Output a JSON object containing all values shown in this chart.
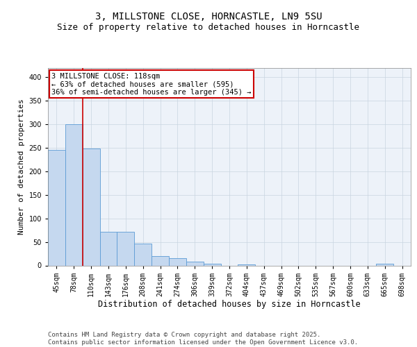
{
  "title_line1": "3, MILLSTONE CLOSE, HORNCASTLE, LN9 5SU",
  "title_line2": "Size of property relative to detached houses in Horncastle",
  "xlabel": "Distribution of detached houses by size in Horncastle",
  "ylabel": "Number of detached properties",
  "categories": [
    "45sqm",
    "78sqm",
    "110sqm",
    "143sqm",
    "176sqm",
    "208sqm",
    "241sqm",
    "274sqm",
    "306sqm",
    "339sqm",
    "372sqm",
    "404sqm",
    "437sqm",
    "469sqm",
    "502sqm",
    "535sqm",
    "567sqm",
    "600sqm",
    "633sqm",
    "665sqm",
    "698sqm"
  ],
  "values": [
    245,
    300,
    248,
    72,
    72,
    47,
    20,
    16,
    8,
    3,
    0,
    2,
    0,
    0,
    0,
    0,
    0,
    0,
    0,
    3,
    0
  ],
  "bar_color": "#c5d8ef",
  "bar_edge_color": "#5b9bd5",
  "red_line_x": 1.5,
  "red_line_color": "#cc0000",
  "annotation_text": "3 MILLSTONE CLOSE: 118sqm\n← 63% of detached houses are smaller (595)\n36% of semi-detached houses are larger (345) →",
  "annotation_box_color": "#ffffff",
  "annotation_box_edge_color": "#cc0000",
  "ylim": [
    0,
    420
  ],
  "yticks": [
    0,
    50,
    100,
    150,
    200,
    250,
    300,
    350,
    400
  ],
  "grid_color": "#c8d4e0",
  "background_color": "#edf2f9",
  "footer_text": "Contains HM Land Registry data © Crown copyright and database right 2025.\nContains public sector information licensed under the Open Government Licence v3.0.",
  "title_fontsize": 10,
  "subtitle_fontsize": 9,
  "tick_fontsize": 7,
  "xlabel_fontsize": 8.5,
  "ylabel_fontsize": 8,
  "annotation_fontsize": 7.5,
  "footer_fontsize": 6.5
}
